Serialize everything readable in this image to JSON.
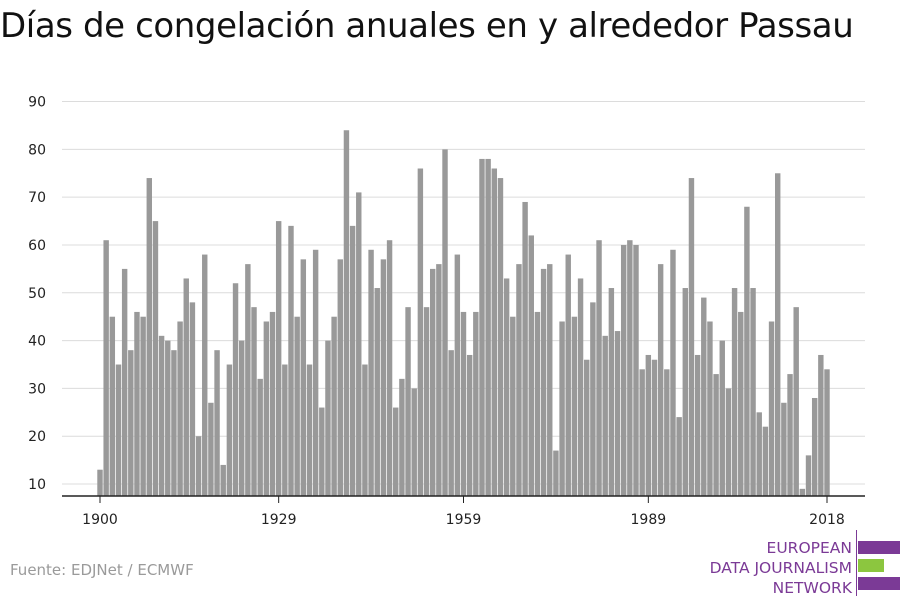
{
  "header": {
    "title": "Días de congelación anuales en y alrededor Passau"
  },
  "footer": {
    "source": "Fuente: EDJNet / ECMWF"
  },
  "logo": {
    "line1": "EUROPEAN",
    "line2": "DATA JOURNALISM",
    "line3": "NETWORK",
    "color_purple": "#7b3a96",
    "color_green": "#8cc63f"
  },
  "chart_data": {
    "type": "bar",
    "title": "Días de congelación anuales en y alrededor Passau",
    "xlabel": "",
    "ylabel": "",
    "x": [
      1900,
      1901,
      1902,
      1903,
      1904,
      1905,
      1906,
      1907,
      1908,
      1909,
      1910,
      1911,
      1912,
      1913,
      1914,
      1915,
      1916,
      1917,
      1918,
      1919,
      1920,
      1921,
      1922,
      1923,
      1924,
      1925,
      1926,
      1927,
      1928,
      1929,
      1930,
      1931,
      1932,
      1933,
      1934,
      1935,
      1936,
      1937,
      1938,
      1939,
      1940,
      1941,
      1942,
      1943,
      1944,
      1945,
      1946,
      1947,
      1948,
      1949,
      1950,
      1951,
      1952,
      1953,
      1954,
      1955,
      1956,
      1957,
      1958,
      1959,
      1960,
      1961,
      1962,
      1963,
      1964,
      1965,
      1966,
      1967,
      1968,
      1969,
      1970,
      1971,
      1972,
      1973,
      1974,
      1975,
      1976,
      1977,
      1978,
      1979,
      1980,
      1981,
      1982,
      1983,
      1984,
      1985,
      1986,
      1987,
      1988,
      1989,
      1990,
      1991,
      1992,
      1993,
      1994,
      1995,
      1996,
      1997,
      1998,
      1999,
      2000,
      2001,
      2002,
      2003,
      2004,
      2005,
      2006,
      2007,
      2008,
      2009,
      2010,
      2011,
      2012,
      2013,
      2014,
      2015,
      2016,
      2017,
      2018
    ],
    "values": [
      13,
      61,
      45,
      35,
      55,
      38,
      46,
      45,
      74,
      65,
      41,
      40,
      38,
      44,
      53,
      48,
      20,
      58,
      27,
      38,
      14,
      35,
      52,
      40,
      56,
      47,
      32,
      44,
      46,
      65,
      35,
      64,
      45,
      57,
      35,
      59,
      26,
      40,
      45,
      57,
      84,
      64,
      71,
      35,
      59,
      51,
      57,
      61,
      26,
      32,
      47,
      30,
      76,
      47,
      55,
      56,
      80,
      38,
      58,
      46,
      37,
      46,
      78,
      78,
      76,
      74,
      53,
      45,
      56,
      69,
      62,
      46,
      55,
      56,
      17,
      44,
      58,
      45,
      53,
      36,
      48,
      61,
      41,
      51,
      42,
      60,
      61,
      60,
      34,
      37,
      36,
      56,
      34,
      59,
      24,
      51,
      74,
      37,
      49,
      44,
      33,
      40,
      30,
      51,
      46,
      68,
      51,
      25,
      22,
      44,
      75,
      27,
      33,
      47,
      9,
      16,
      28,
      37,
      34
    ],
    "x_ticks": [
      "1900",
      "1929",
      "1959",
      "1989",
      "2018"
    ],
    "y_ticks": [
      10,
      20,
      30,
      40,
      50,
      60,
      70,
      80,
      90
    ],
    "ylim": [
      7.5,
      92
    ],
    "xlim": [
      1899.5,
      2018.5
    ],
    "bar_color": "#999999",
    "grid": true,
    "legend": "none"
  }
}
